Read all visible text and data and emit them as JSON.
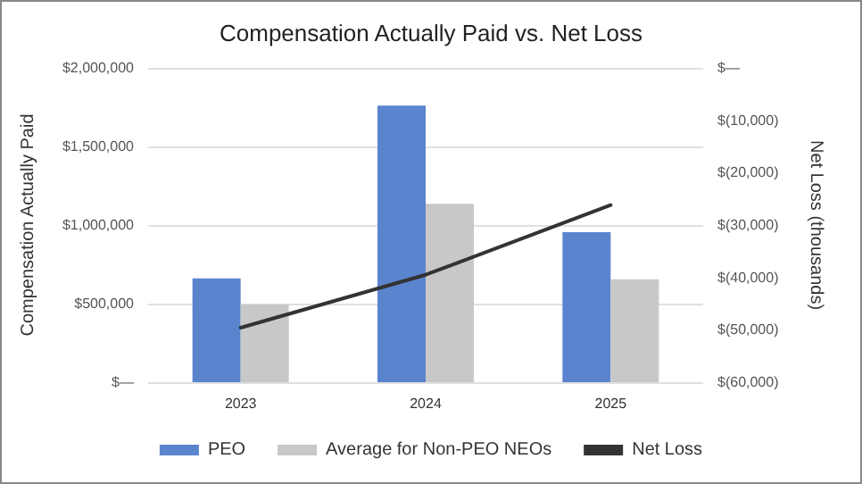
{
  "chart_data": {
    "type": "bar",
    "title": "Compensation Actually Paid vs. Net Loss",
    "ylabel": "Compensation Actually Paid",
    "y2label": "Net Loss (thousands)",
    "categories": [
      "2023",
      "2024",
      "2025"
    ],
    "series": [
      {
        "name": "PEO",
        "color": "#5b84cf",
        "values": [
          660000,
          1760000,
          955000
        ]
      },
      {
        "name": "Average for Non-PEO NEOs",
        "color": "#c8c8c8",
        "values": [
          495000,
          1135000,
          655000
        ]
      },
      {
        "name": "Net Loss",
        "type": "line",
        "axis": "y2",
        "color": "#333333",
        "marker": "none",
        "values": [
          -49600,
          -39500,
          -26200
        ]
      }
    ],
    "ylim": [
      0,
      2000000
    ],
    "yticks": [
      {
        "value": 0,
        "label": "$—"
      },
      {
        "value": 500000,
        "label": "$500,000"
      },
      {
        "value": 1000000,
        "label": "$1,000,000"
      },
      {
        "value": 1500000,
        "label": "$1,500,000"
      },
      {
        "value": 2000000,
        "label": "$2,000,000"
      }
    ],
    "y2lim": [
      -60000,
      0
    ],
    "y2ticks": [
      {
        "value": -60000,
        "label": "$(60,000)"
      },
      {
        "value": -50000,
        "label": "$(50,000)"
      },
      {
        "value": -40000,
        "label": "$(40,000)"
      },
      {
        "value": -30000,
        "label": "$(30,000)"
      },
      {
        "value": -20000,
        "label": "$(20,000)"
      },
      {
        "value": -10000,
        "label": "$(10,000)"
      },
      {
        "value": 0,
        "label": "$—"
      }
    ],
    "grid": "y",
    "legend": "bottom"
  }
}
